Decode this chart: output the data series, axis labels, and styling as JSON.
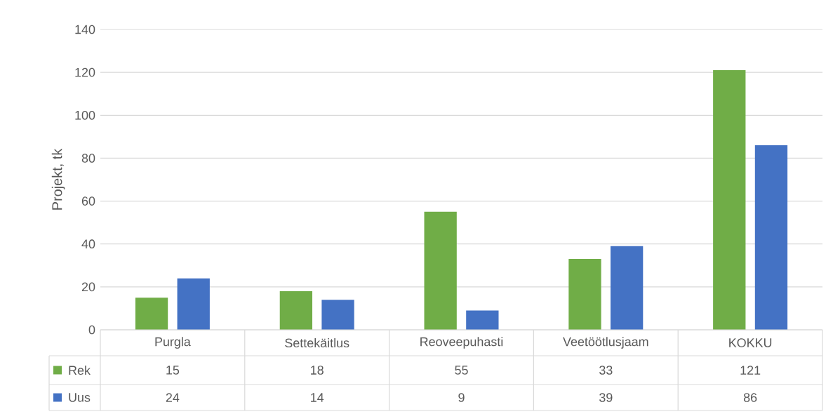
{
  "chart_data": {
    "type": "bar",
    "ylabel": "Projekt, tk",
    "categories": [
      "Purgla",
      "Settekäitlus",
      "Reoveepuhasti",
      "Veetöötlusjaam",
      "KOKKU"
    ],
    "series": [
      {
        "name": "Rek",
        "color": "#70ad47",
        "values": [
          15,
          18,
          55,
          33,
          121
        ]
      },
      {
        "name": "Uus",
        "color": "#4472c4",
        "values": [
          24,
          14,
          9,
          39,
          86
        ]
      }
    ],
    "ylim": [
      0,
      140
    ],
    "yticks": [
      0,
      20,
      40,
      60,
      80,
      100,
      120,
      140
    ],
    "grid": "y",
    "legend": "bottom",
    "data_labels": true
  }
}
